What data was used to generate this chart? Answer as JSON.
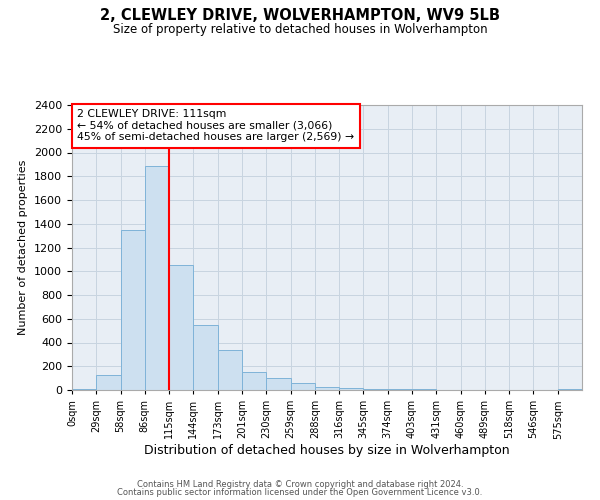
{
  "title": "2, CLEWLEY DRIVE, WOLVERHAMPTON, WV9 5LB",
  "subtitle": "Size of property relative to detached houses in Wolverhampton",
  "xlabel": "Distribution of detached houses by size in Wolverhampton",
  "ylabel": "Number of detached properties",
  "bar_labels": [
    "0sqm",
    "29sqm",
    "58sqm",
    "86sqm",
    "115sqm",
    "144sqm",
    "173sqm",
    "201sqm",
    "230sqm",
    "259sqm",
    "288sqm",
    "316sqm",
    "345sqm",
    "374sqm",
    "403sqm",
    "431sqm",
    "460sqm",
    "489sqm",
    "518sqm",
    "546sqm",
    "575sqm"
  ],
  "bar_values": [
    10,
    125,
    1350,
    1890,
    1050,
    550,
    340,
    155,
    105,
    57,
    28,
    20,
    10,
    5,
    10,
    0,
    0,
    0,
    0,
    0,
    10
  ],
  "bar_color": "#cde0f0",
  "bar_edge_color": "#7fb3d8",
  "grid_color": "#c8d4e0",
  "background_color": "#e8eef5",
  "vline_x": 4,
  "vline_color": "red",
  "annotation_title": "2 CLEWLEY DRIVE: 111sqm",
  "annotation_line1": "← 54% of detached houses are smaller (3,066)",
  "annotation_line2": "45% of semi-detached houses are larger (2,569) →",
  "annotation_box_color": "white",
  "annotation_box_edge": "red",
  "ylim": [
    0,
    2400
  ],
  "yticks": [
    0,
    200,
    400,
    600,
    800,
    1000,
    1200,
    1400,
    1600,
    1800,
    2000,
    2200,
    2400
  ],
  "footer1": "Contains HM Land Registry data © Crown copyright and database right 2024.",
  "footer2": "Contains public sector information licensed under the Open Government Licence v3.0."
}
